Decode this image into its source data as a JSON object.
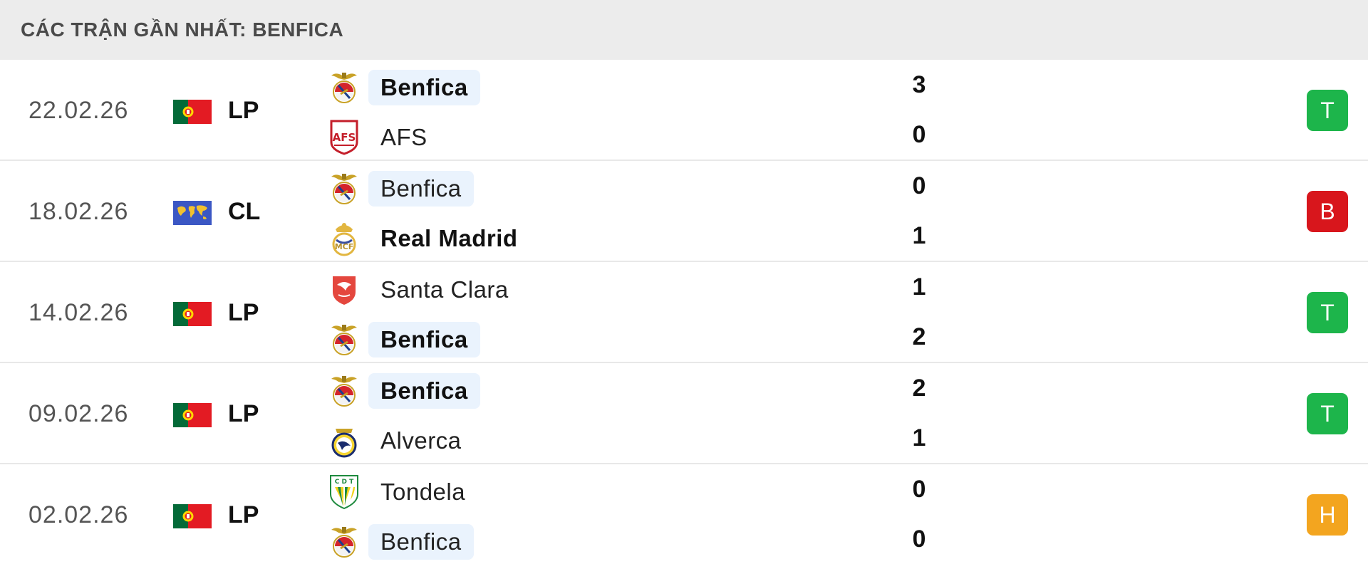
{
  "header": {
    "title": "CÁC TRẬN GẦN NHẤT: BENFICA"
  },
  "matches": [
    {
      "date": "22.02.26",
      "league": "LP",
      "flag": "portugal-flag",
      "home": {
        "name": "Benfica",
        "crest": "benfica-crest",
        "bold": true,
        "highlight": true
      },
      "away": {
        "name": "AFS",
        "crest": "afs-crest",
        "bold": false,
        "highlight": false
      },
      "home_score": "3",
      "away_score": "0",
      "result": "T",
      "result_color": "#1db54b"
    },
    {
      "date": "18.02.26",
      "league": "CL",
      "flag": "world-flag",
      "home": {
        "name": "Benfica",
        "crest": "benfica-crest",
        "bold": false,
        "highlight": true
      },
      "away": {
        "name": "Real Madrid",
        "crest": "real-madrid-crest",
        "bold": true,
        "highlight": false
      },
      "home_score": "0",
      "away_score": "1",
      "result": "B",
      "result_color": "#d8161c"
    },
    {
      "date": "14.02.26",
      "league": "LP",
      "flag": "portugal-flag",
      "home": {
        "name": "Santa Clara",
        "crest": "santa-clara-crest",
        "bold": false,
        "highlight": false
      },
      "away": {
        "name": "Benfica",
        "crest": "benfica-crest",
        "bold": true,
        "highlight": true
      },
      "home_score": "1",
      "away_score": "2",
      "result": "T",
      "result_color": "#1db54b"
    },
    {
      "date": "09.02.26",
      "league": "LP",
      "flag": "portugal-flag",
      "home": {
        "name": "Benfica",
        "crest": "benfica-crest",
        "bold": true,
        "highlight": true
      },
      "away": {
        "name": "Alverca",
        "crest": "alverca-crest",
        "bold": false,
        "highlight": false
      },
      "home_score": "2",
      "away_score": "1",
      "result": "T",
      "result_color": "#1db54b"
    },
    {
      "date": "02.02.26",
      "league": "LP",
      "flag": "portugal-flag",
      "home": {
        "name": "Tondela",
        "crest": "tondela-crest",
        "bold": false,
        "highlight": false
      },
      "away": {
        "name": "Benfica",
        "crest": "benfica-crest",
        "bold": false,
        "highlight": true
      },
      "home_score": "0",
      "away_score": "0",
      "result": "H",
      "result_color": "#f3a51f"
    }
  ]
}
